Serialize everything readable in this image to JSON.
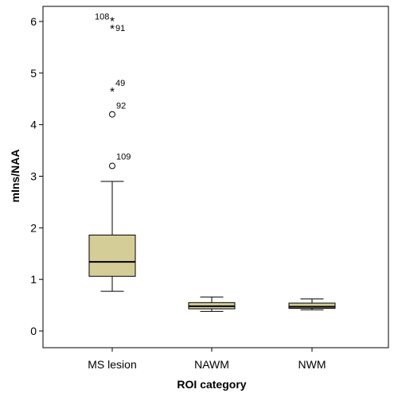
{
  "chart_data": {
    "type": "boxplot",
    "xlabel": "ROI category",
    "ylabel": "mIns/NAA",
    "ylim": [
      -0.3,
      6.3
    ],
    "yticks": [
      0,
      1,
      2,
      3,
      4,
      5,
      6
    ],
    "categories": [
      "MS lesion",
      "NAWM",
      "NWM"
    ],
    "box_color": "#d4cd97",
    "boxes": [
      {
        "category": "MS lesion",
        "whisker_low": 0.77,
        "q1": 1.06,
        "median": 1.34,
        "q3": 1.86,
        "whisker_high": 2.9,
        "outliers": [
          {
            "label": "108",
            "value": 6.02,
            "symbol": "*"
          },
          {
            "label": "91",
            "value": 5.88,
            "symbol": "*"
          },
          {
            "label": "49",
            "value": 4.66,
            "symbol": "*"
          },
          {
            "label": "92",
            "value": 4.2,
            "symbol": "o"
          },
          {
            "label": "109",
            "value": 3.2,
            "symbol": "o"
          }
        ]
      },
      {
        "category": "NAWM",
        "whisker_low": 0.38,
        "q1": 0.43,
        "median": 0.48,
        "q3": 0.55,
        "whisker_high": 0.66,
        "outliers": []
      },
      {
        "category": "NWM",
        "whisker_low": 0.41,
        "q1": 0.44,
        "median": 0.47,
        "q3": 0.54,
        "whisker_high": 0.62,
        "outliers": []
      }
    ]
  }
}
